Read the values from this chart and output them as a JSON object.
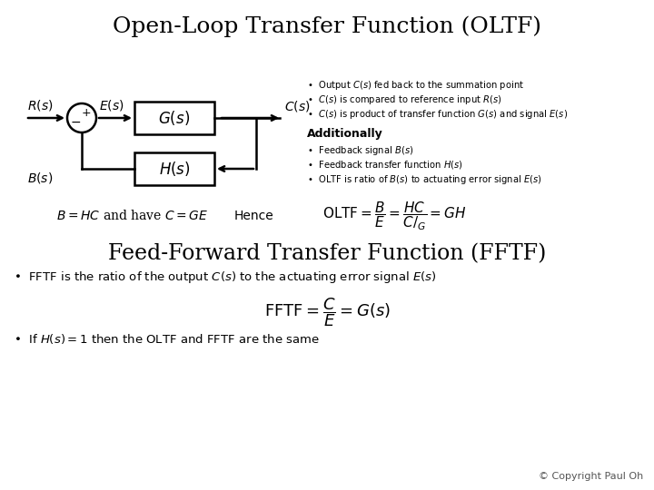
{
  "title": "Open-Loop Transfer Function (OLTF)",
  "title2": "Feed-Forward Transfer Function (FFTF)",
  "bg_color": "#ffffff",
  "text_color": "#000000",
  "copyright": "© Copyright Paul Oh",
  "bullet1_1": "Output $C(s)$ fed back to the summation point",
  "bullet1_2": "$C(s)$ is compared to reference input $R(s)$",
  "bullet1_3": "$C(s)$ is product of transfer function $G(s)$ and signal $E(s)$",
  "additionally": "Additionally",
  "bullet2_1": "Feedback signal $B(s)$",
  "bullet2_2": "Feedback transfer function $H(s)$",
  "bullet2_3": "OLTF is ratio of $B(s)$ to actuating error signal $E(s)$",
  "eq1": "$B = HC$ and have $C = GE$",
  "hence": "Hence",
  "oltf_eq": "$\\mathrm{OLTF} = \\dfrac{B}{E} = \\dfrac{HC}{C/_{G}} = GH$",
  "fftf_bullet1": "FFTF is the ratio of the output $C(s)$ to the actuating error signal $E(s)$",
  "fftf_eq": "$\\mathrm{FFTF} = \\dfrac{C}{E} = G(s)$",
  "fftf_bullet2": "If $H(s) = 1$ then the OLTF and FFTF are the same"
}
